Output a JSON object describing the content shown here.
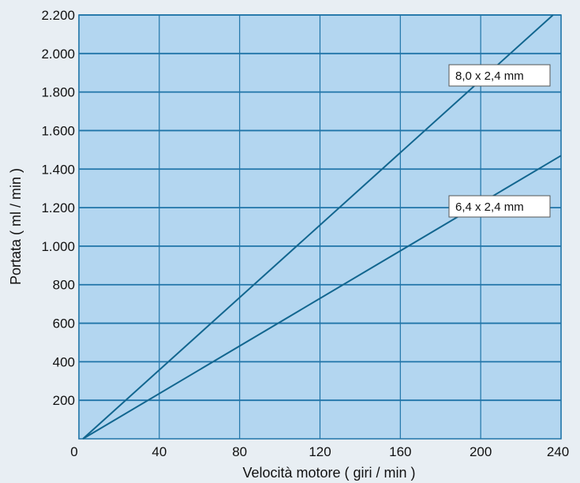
{
  "chart_data": {
    "type": "line",
    "title": "",
    "xlabel": "Velocità motore ( giri / min )",
    "ylabel": "Portata ( ml / min )",
    "xlim": [
      0,
      240
    ],
    "ylim": [
      0,
      2200
    ],
    "x_ticks": [
      0,
      40,
      80,
      120,
      160,
      200,
      240
    ],
    "x_tick_labels": [
      "0",
      "40",
      "80",
      "120",
      "160",
      "200",
      "240"
    ],
    "y_ticks": [
      200,
      400,
      600,
      800,
      1000,
      1200,
      1400,
      1600,
      1800,
      2000,
      2200
    ],
    "y_tick_labels": [
      "200",
      "400",
      "600",
      "800",
      "1.000",
      "1.200",
      "1.400",
      "1.600",
      "1.800",
      "2.000",
      "2.200"
    ],
    "grid": true,
    "series": [
      {
        "name": "8,0 x 2,4 mm",
        "x": [
          2,
          236
        ],
        "y": [
          0,
          2200
        ]
      },
      {
        "name": "6,4 x 2,4 mm",
        "x": [
          2,
          240
        ],
        "y": [
          0,
          1470
        ]
      }
    ],
    "colors": {
      "plot_background": "#b3d6f0",
      "page_background": "#e8eef3",
      "grid": "#1f74a8",
      "line": "#12668f",
      "label_box": "#ffffff"
    }
  }
}
